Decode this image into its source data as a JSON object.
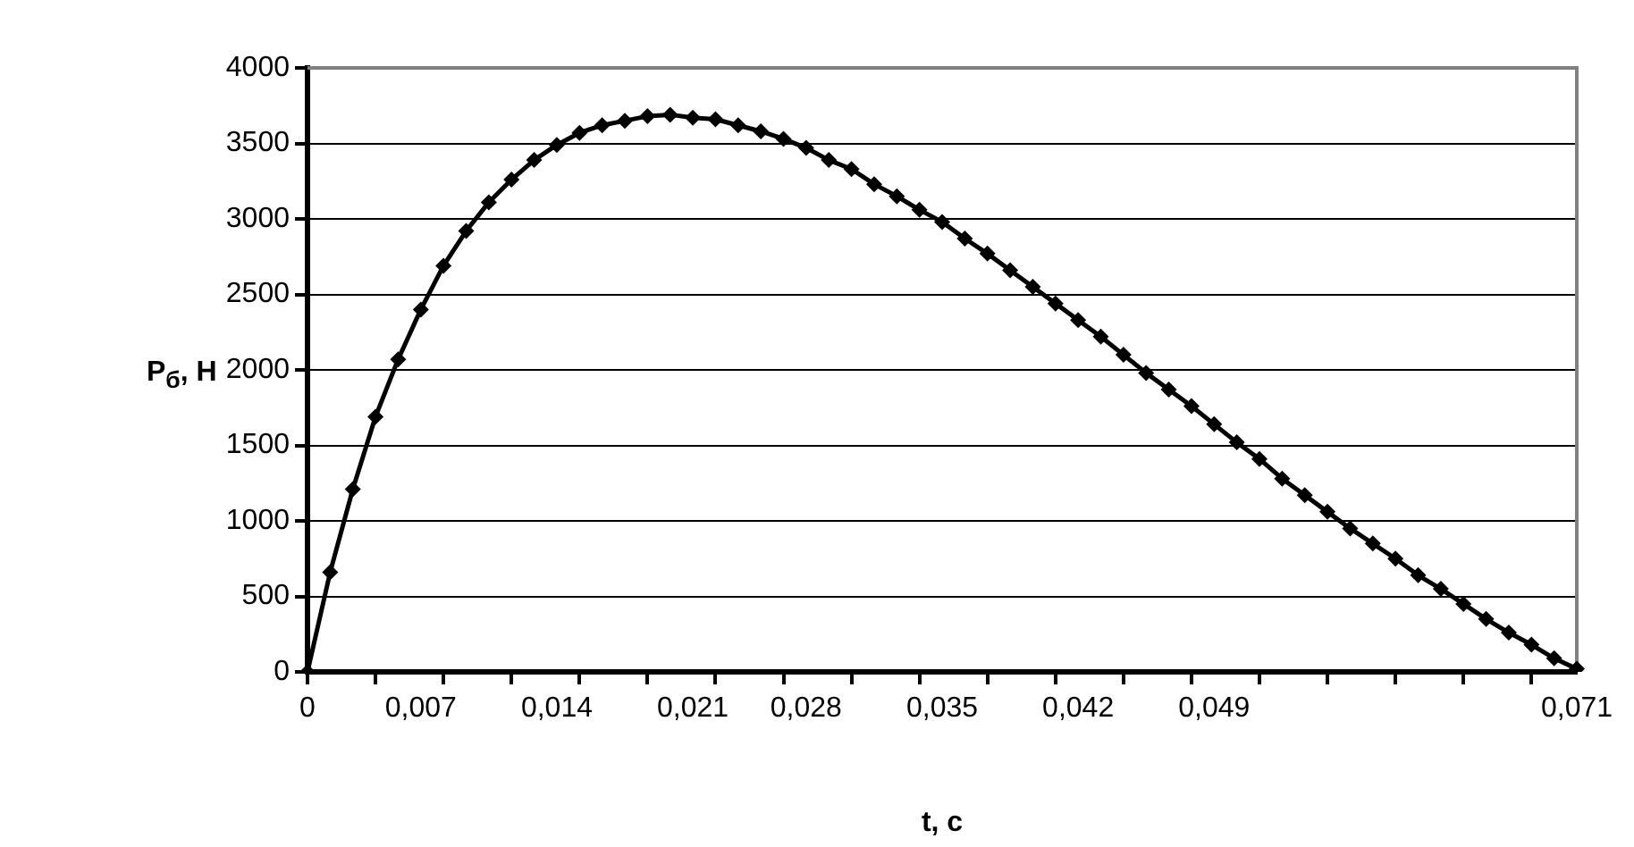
{
  "chart_data": {
    "type": "line",
    "xlabel": "t, с",
    "ylabel": "P$_{б}$, Н",
    "categories": [
      "0",
      null,
      null,
      null,
      null,
      "0,007",
      null,
      null,
      null,
      null,
      null,
      "0,014",
      null,
      null,
      null,
      null,
      null,
      "0,021",
      null,
      null,
      null,
      null,
      "0,028",
      null,
      null,
      null,
      null,
      null,
      "0,035",
      null,
      null,
      null,
      null,
      null,
      "0,042",
      null,
      null,
      null,
      null,
      null,
      "0,049",
      null,
      null,
      null,
      null,
      null,
      null,
      null,
      null,
      null,
      null,
      null,
      null,
      null,
      null,
      null,
      "0,071"
    ],
    "values": [
      0,
      660,
      1210,
      1690,
      2070,
      2400,
      2690,
      2920,
      3110,
      3260,
      3390,
      3490,
      3570,
      3620,
      3650,
      3680,
      3690,
      3670,
      3660,
      3620,
      3580,
      3530,
      3470,
      3390,
      3330,
      3230,
      3150,
      3060,
      2980,
      2870,
      2770,
      2660,
      2550,
      2440,
      2330,
      2220,
      2100,
      1980,
      1870,
      1760,
      1640,
      1520,
      1410,
      1280,
      1170,
      1060,
      950,
      850,
      750,
      640,
      550,
      450,
      350,
      260,
      180,
      90,
      20
    ],
    "color": "#000000",
    "ylim": [
      0,
      4000
    ],
    "yticks": [
      0,
      500,
      1000,
      1500,
      2000,
      2500,
      3000,
      3500,
      4000
    ],
    "grid": "y",
    "marker": "diamond",
    "line_style": "solid"
  }
}
